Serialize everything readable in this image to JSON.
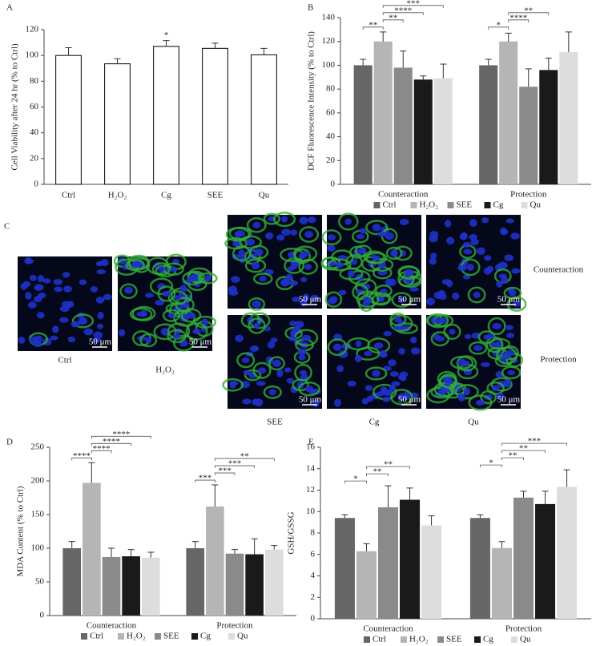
{
  "chart_data": [
    {
      "type": "bar",
      "panel": "A",
      "y_label": "Cell Viability after 24 hr (% to Ctrl)",
      "categories": [
        "Ctrl",
        "H₂O₂",
        "Cg",
        "SEE",
        "Qu"
      ],
      "values": [
        100,
        93.5,
        107,
        105.5,
        100.5
      ],
      "errors": [
        6,
        4,
        4.5,
        4,
        5
      ],
      "color": "#ffffff",
      "edge_color": "#000000",
      "ylim": [
        0,
        120
      ],
      "yticks": [
        0,
        20,
        40,
        60,
        80,
        100,
        120
      ],
      "annotations": [
        {
          "category": "Cg",
          "label": "*"
        }
      ]
    },
    {
      "type": "grouped_bar",
      "panel": "B",
      "y_label": "DCF Fluorescence Intensity (% to Ctrl)",
      "categories": [
        "Counteraction",
        "Protection"
      ],
      "series": [
        {
          "name": "Ctrl",
          "color": "#666666",
          "values": [
            100,
            100
          ],
          "errors": [
            5,
            5
          ]
        },
        {
          "name": "H₂O₂",
          "color": "#b5b5b5",
          "values": [
            120,
            120
          ],
          "errors": [
            8,
            7
          ]
        },
        {
          "name": "SEE",
          "color": "#8a8a8a",
          "values": [
            98,
            82
          ],
          "errors": [
            14,
            15
          ]
        },
        {
          "name": "Cg",
          "color": "#1a1a1a",
          "values": [
            88,
            96
          ],
          "errors": [
            3,
            10
          ]
        },
        {
          "name": "Qu",
          "color": "#dddddd",
          "values": [
            89,
            111
          ],
          "errors": [
            12,
            17
          ]
        }
      ],
      "ylim": [
        0,
        140
      ],
      "yticks": [
        0,
        20,
        40,
        60,
        80,
        100,
        120,
        140
      ],
      "annotations": [
        {
          "category": "Counteraction",
          "between": [
            "Ctrl",
            "H₂O₂"
          ],
          "label": "**"
        },
        {
          "category": "Counteraction",
          "between": [
            "H₂O₂",
            "SEE"
          ],
          "label": "**"
        },
        {
          "category": "Counteraction",
          "between": [
            "H₂O₂",
            "Cg"
          ],
          "label": "****"
        },
        {
          "category": "Counteraction",
          "between": [
            "H₂O₂",
            "Qu"
          ],
          "label": "***"
        },
        {
          "category": "Protection",
          "between": [
            "Ctrl",
            "H₂O₂"
          ],
          "label": "*"
        },
        {
          "category": "Protection",
          "between": [
            "H₂O₂",
            "SEE"
          ],
          "label": "****"
        },
        {
          "category": "Protection",
          "between": [
            "H₂O₂",
            "Cg"
          ],
          "label": "**"
        }
      ]
    },
    {
      "type": "grouped_bar",
      "panel": "D",
      "y_label": "MDA Content (% to Ctrl)",
      "categories": [
        "Counteraction",
        "Protection"
      ],
      "series": [
        {
          "name": "Ctrl",
          "color": "#666666",
          "values": [
            100,
            100
          ],
          "errors": [
            10,
            10
          ]
        },
        {
          "name": "H₂O₂",
          "color": "#b5b5b5",
          "values": [
            197,
            162
          ],
          "errors": [
            30,
            32
          ]
        },
        {
          "name": "SEE",
          "color": "#8a8a8a",
          "values": [
            87,
            92
          ],
          "errors": [
            13,
            6
          ]
        },
        {
          "name": "Cg",
          "color": "#1a1a1a",
          "values": [
            88,
            91
          ],
          "errors": [
            10,
            23
          ]
        },
        {
          "name": "Qu",
          "color": "#dddddd",
          "values": [
            86,
            98
          ],
          "errors": [
            8,
            6
          ]
        }
      ],
      "ylim": [
        0,
        250
      ],
      "yticks": [
        0,
        50,
        100,
        150,
        200,
        250
      ],
      "annotations": [
        {
          "category": "Counteraction",
          "between": [
            "Ctrl",
            "H₂O₂"
          ],
          "label": "****"
        },
        {
          "category": "Counteraction",
          "between": [
            "H₂O₂",
            "SEE"
          ],
          "label": "****"
        },
        {
          "category": "Counteraction",
          "between": [
            "H₂O₂",
            "Cg"
          ],
          "label": "****"
        },
        {
          "category": "Counteraction",
          "between": [
            "H₂O₂",
            "Qu"
          ],
          "label": "****"
        },
        {
          "category": "Protection",
          "between": [
            "Ctrl",
            "H₂O₂"
          ],
          "label": "***"
        },
        {
          "category": "Protection",
          "between": [
            "H₂O₂",
            "SEE"
          ],
          "label": "***"
        },
        {
          "category": "Protection",
          "between": [
            "H₂O₂",
            "Cg"
          ],
          "label": "***"
        },
        {
          "category": "Protection",
          "between": [
            "H₂O₂",
            "Qu"
          ],
          "label": "**"
        }
      ]
    },
    {
      "type": "grouped_bar",
      "panel": "E",
      "y_label": "GSH/GSSG",
      "categories": [
        "Counteraction",
        "Protection"
      ],
      "series": [
        {
          "name": "Ctrl",
          "color": "#666666",
          "values": [
            9.4,
            9.4
          ],
          "errors": [
            0.3,
            0.3
          ]
        },
        {
          "name": "H₂O₂",
          "color": "#b5b5b5",
          "values": [
            6.3,
            6.6
          ],
          "errors": [
            0.7,
            0.6
          ]
        },
        {
          "name": "SEE",
          "color": "#8a8a8a",
          "values": [
            10.4,
            11.3
          ],
          "errors": [
            2,
            0.6
          ]
        },
        {
          "name": "Cg",
          "color": "#1a1a1a",
          "values": [
            11.1,
            10.7
          ],
          "errors": [
            1.1,
            1.2
          ]
        },
        {
          "name": "Qu",
          "color": "#dddddd",
          "values": [
            8.7,
            12.3
          ],
          "errors": [
            0.9,
            1.6
          ]
        }
      ],
      "ylim": [
        0,
        16
      ],
      "yticks": [
        0,
        2,
        4,
        6,
        8,
        10,
        12,
        14,
        16
      ],
      "annotations": [
        {
          "category": "Counteraction",
          "between": [
            "Ctrl",
            "H₂O₂"
          ],
          "label": "*"
        },
        {
          "category": "Counteraction",
          "between": [
            "H₂O₂",
            "SEE"
          ],
          "label": "**"
        },
        {
          "category": "Counteraction",
          "between": [
            "H₂O₂",
            "Cg"
          ],
          "label": "**"
        },
        {
          "category": "Protection",
          "between": [
            "Ctrl",
            "H₂O₂"
          ],
          "label": "*"
        },
        {
          "category": "Protection",
          "between": [
            "H₂O₂",
            "SEE"
          ],
          "label": "**"
        },
        {
          "category": "Protection",
          "between": [
            "H₂O₂",
            "Cg"
          ],
          "label": "**"
        },
        {
          "category": "Protection",
          "between": [
            "H₂O₂",
            "Qu"
          ],
          "label": "***"
        }
      ]
    }
  ],
  "images_panel": {
    "panel": "C",
    "controls": [
      "Ctrl",
      "H₂O₂"
    ],
    "columns": [
      "SEE",
      "Cg",
      "Qu"
    ],
    "rows": [
      "Counteraction",
      "Protection"
    ],
    "scale_bar": "50 μm"
  }
}
